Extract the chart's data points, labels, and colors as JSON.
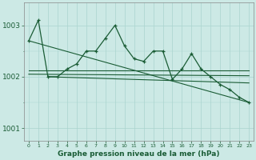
{
  "hours": [
    0,
    1,
    2,
    3,
    4,
    5,
    6,
    7,
    8,
    9,
    10,
    11,
    12,
    13,
    14,
    15,
    16,
    17,
    18,
    19,
    20,
    21,
    22,
    23
  ],
  "pressure_main": [
    1002.7,
    1003.1,
    1002.0,
    1002.0,
    1002.15,
    1002.25,
    1002.5,
    1002.5,
    1002.75,
    1003.0,
    1002.6,
    1002.35,
    1002.3,
    1002.5,
    1002.5,
    1001.95,
    1002.15,
    1002.45,
    1002.15,
    1002.0,
    1001.85,
    1001.75,
    1001.6,
    1001.5
  ],
  "ref_line1": [
    1002.12,
    1002.12
  ],
  "ref_line2": [
    1002.05,
    1002.02
  ],
  "diag_line1_x": [
    2,
    23
  ],
  "diag_line1_y": [
    1002.0,
    1001.88
  ],
  "diag_line2_x": [
    0,
    23
  ],
  "diag_line2_y": [
    1002.7,
    1001.5
  ],
  "bg_color": "#cce9e5",
  "grid_color_major": "#aad4cf",
  "grid_color_minor": "#aad4cf",
  "line_color": "#1a5c35",
  "xlabel": "Graphe pression niveau de la mer (hPa)",
  "yticks": [
    1001,
    1002,
    1003
  ],
  "ylim": [
    1000.75,
    1003.45
  ],
  "xlim": [
    -0.5,
    23.5
  ]
}
